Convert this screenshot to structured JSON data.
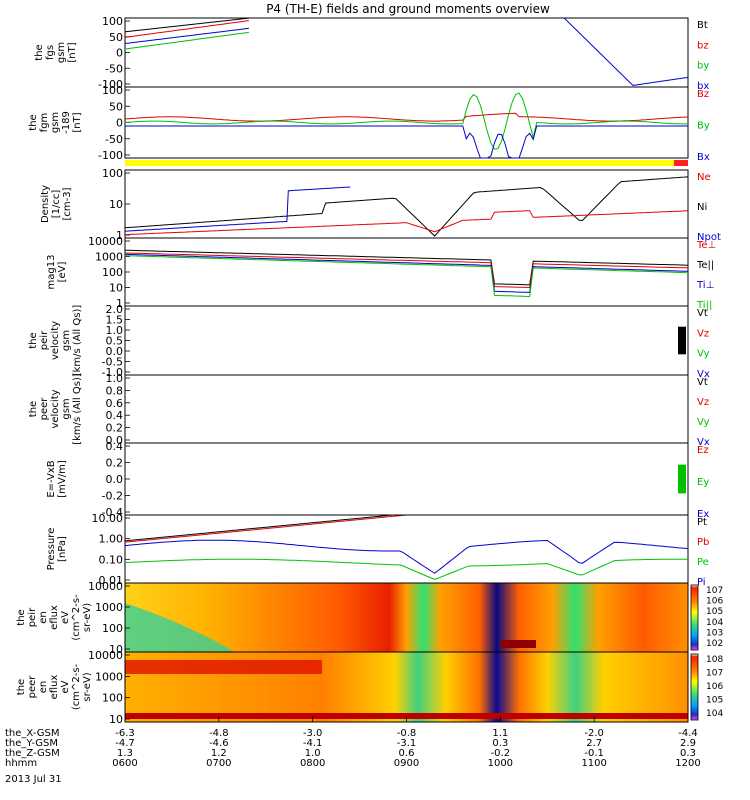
{
  "chart_data": {
    "type": "line",
    "title": "P4 (TH-E) fields and ground moments overview",
    "x_ticks_hhmm": [
      "0600",
      "0700",
      "0800",
      "0900",
      "1000",
      "1100",
      "1200"
    ],
    "date": "2013 Jul 31",
    "position_rows": [
      {
        "label": "the_X-GSM",
        "values": [
          "-6.3",
          "-4.8",
          "-3.0",
          "-0.8",
          "1.1",
          "-2.0",
          "-4.4"
        ]
      },
      {
        "label": "the_Y-GSM",
        "values": [
          "-4.7",
          "-4.6",
          "-4.1",
          "-3.1",
          "0.3",
          "2.7",
          "2.9"
        ]
      },
      {
        "label": "the_Z-GSM",
        "values": [
          "1.3",
          "1.2",
          "1.0",
          "0.6",
          "-0.2",
          "-0.1",
          "0.3"
        ]
      },
      {
        "label": "hhmm",
        "values": []
      }
    ],
    "panels": [
      {
        "id": "fgs",
        "ylabel": [
          "the",
          "fgs",
          "gsm",
          "[nT]"
        ],
        "ticks": [
          "100",
          "50",
          "0",
          "-50",
          "-100"
        ],
        "legend": [
          {
            "text": "Bt",
            "color": "#000000"
          },
          {
            "text": "bz",
            "color": "#e00000"
          },
          {
            "text": "by",
            "color": "#00c000"
          },
          {
            "text": "bx",
            "color": "#0000d0"
          }
        ]
      },
      {
        "id": "fgm",
        "ylabel": [
          "the",
          "fgm",
          "gsm",
          "-189",
          "[nT]"
        ],
        "ticks": [
          "100",
          "50",
          "0",
          "-50",
          "-100"
        ],
        "legend": [
          {
            "text": "Bz",
            "color": "#e00000"
          },
          {
            "text": "By",
            "color": "#00c000"
          },
          {
            "text": "Bx",
            "color": "#0000d0"
          }
        ]
      },
      {
        "id": "density",
        "ylabel": [
          "Density",
          "[1/cc]",
          "[cm-3]"
        ],
        "ticks": [
          "100",
          "10",
          "1"
        ],
        "legend": [
          {
            "text": "Ne",
            "color": "#e00000"
          },
          {
            "text": "Ni",
            "color": "#000000"
          },
          {
            "text": "Npot",
            "color": "#0000d0"
          }
        ]
      },
      {
        "id": "temp",
        "ylabel": [
          "mag13",
          "[eV]"
        ],
        "ticks": [
          "10000",
          "1000",
          "100",
          "10",
          "1"
        ],
        "legend": [
          {
            "text": "Te⊥",
            "color": "#e00000"
          },
          {
            "text": "Te||",
            "color": "#000000"
          },
          {
            "text": "Ti⊥",
            "color": "#0000d0"
          },
          {
            "text": "Ti||",
            "color": "#00c000"
          }
        ]
      },
      {
        "id": "peir_vel",
        "ylabel": [
          "the",
          "peir",
          "velocity",
          "gsm",
          "[km/s (All Qs)]"
        ],
        "ticks": [
          "2.0",
          "1.5",
          "1.0",
          "0.5",
          "0.0",
          "-0.5",
          "-1.0"
        ],
        "legend": [
          {
            "text": "Vt",
            "color": "#000000"
          },
          {
            "text": "Vz",
            "color": "#e00000"
          },
          {
            "text": "Vy",
            "color": "#00c000"
          },
          {
            "text": "Vx",
            "color": "#0000d0"
          }
        ]
      },
      {
        "id": "peer_vel",
        "ylabel": [
          "the",
          "peer",
          "velocity",
          "gsm",
          "[km/s (All Qs)]"
        ],
        "ticks": [
          "1.0",
          "0.8",
          "0.6",
          "0.4",
          "0.2",
          "0.0"
        ],
        "legend": [
          {
            "text": "Vt",
            "color": "#000000"
          },
          {
            "text": "Vz",
            "color": "#e00000"
          },
          {
            "text": "Vy",
            "color": "#00c000"
          },
          {
            "text": "Vx",
            "color": "#0000d0"
          }
        ]
      },
      {
        "id": "efield",
        "ylabel": [
          "E=-VxB",
          "[mV/m]"
        ],
        "ticks": [
          "0.4",
          "0.2",
          "0.0",
          "-0.2",
          "-0.4"
        ],
        "legend": [
          {
            "text": "Ez",
            "color": "#e00000"
          },
          {
            "text": "Ey",
            "color": "#00c000"
          },
          {
            "text": "Ex",
            "color": "#0000d0"
          }
        ]
      },
      {
        "id": "pressure",
        "ylabel": [
          "Pressure",
          "[nPa]"
        ],
        "ticks": [
          "10.00",
          "1.00",
          "0.10",
          "0.01"
        ],
        "legend": [
          {
            "text": "Pt",
            "color": "#000000"
          },
          {
            "text": "Pb",
            "color": "#e00000"
          },
          {
            "text": "Pe",
            "color": "#00c000"
          },
          {
            "text": "Pi",
            "color": "#0000d0"
          }
        ]
      },
      {
        "id": "peir_en",
        "ylabel": [
          "the",
          "peir",
          "en",
          "eflux",
          "eV",
          "(cm^2-s-",
          "sr-eV)"
        ],
        "ticks": [
          "10000",
          "1000",
          "100",
          "10"
        ],
        "colorbar": [
          "10^7",
          "10^6",
          "10^5",
          "10^4",
          "10^3",
          "10^2"
        ]
      },
      {
        "id": "peer_en",
        "ylabel": [
          "the",
          "peer",
          "en",
          "eflux",
          "eV",
          "(cm^2-s-",
          "sr-eV)"
        ],
        "ticks": [
          "10000",
          "1000",
          "100",
          "10"
        ],
        "colorbar": [
          "10^8",
          "10^7",
          "10^6",
          "10^5",
          "10^4"
        ]
      }
    ]
  }
}
